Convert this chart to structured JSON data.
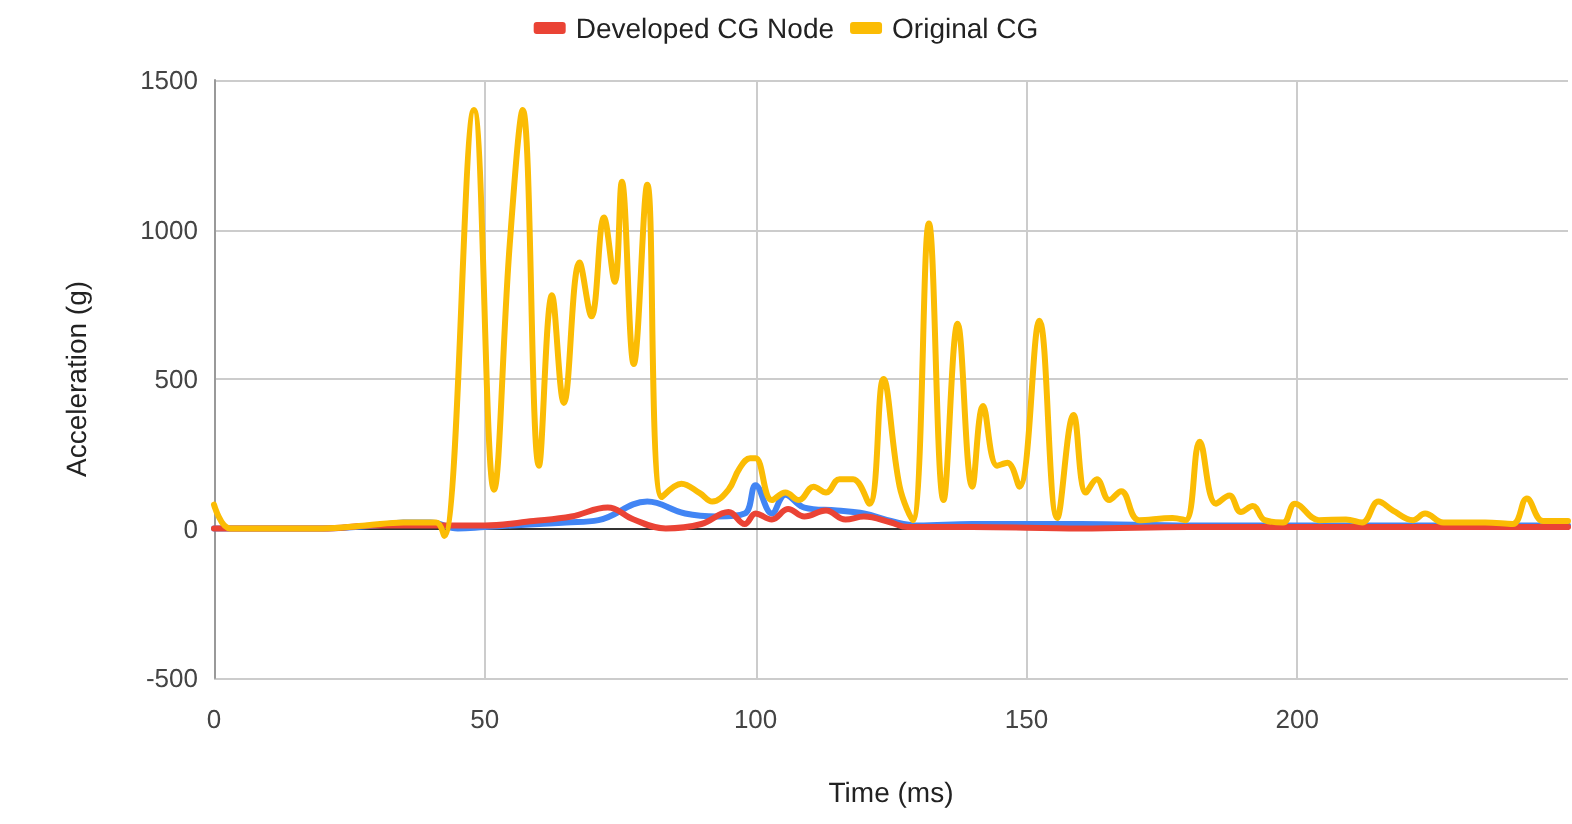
{
  "chart_data": {
    "type": "line",
    "xlabel": "Time (ms)",
    "ylabel": "Acceleration (g)",
    "xlim": [
      0,
      250
    ],
    "xticks": [
      0,
      50,
      100,
      150,
      200
    ],
    "ylim": [
      -500,
      1500
    ],
    "yticks": [
      -500,
      0,
      500,
      1000,
      1500
    ],
    "grid": true,
    "legend": "top",
    "marker": "none",
    "line_style": "solid",
    "series": [
      {
        "color": "#4285f4",
        "x": [
          0,
          10,
          20,
          30,
          35,
          40,
          45,
          50,
          55,
          60,
          65,
          71,
          80,
          87,
          93,
          98,
          100,
          103,
          105.5,
          109,
          115,
          120,
          125,
          130,
          140,
          160,
          180,
          200,
          220,
          240,
          250
        ],
        "values": [
          0,
          0,
          0,
          10,
          20,
          20,
          0,
          5,
          10,
          15,
          20,
          28,
          90,
          50,
          40,
          50,
          145,
          50,
          113,
          70,
          60,
          50,
          25,
          10,
          15,
          15,
          10,
          10,
          10,
          10,
          10
        ]
      },
      {
        "name": "Developed CG Node",
        "color": "#ea4335",
        "x": [
          0,
          10,
          20,
          30,
          40,
          50,
          59,
          66,
          72.7,
          77.5,
          83.4,
          90,
          95,
          98,
          100,
          103,
          106,
          109,
          113,
          116.6,
          120,
          125,
          128,
          140,
          160,
          180,
          200,
          220,
          240,
          250
        ],
        "values": [
          0,
          0,
          0,
          10,
          10,
          10,
          25,
          40,
          70,
          30,
          0,
          15,
          55,
          15,
          50,
          30,
          65,
          40,
          60,
          30,
          40,
          20,
          5,
          5,
          0,
          5,
          5,
          5,
          5,
          5
        ]
      },
      {
        "name": "Original CG",
        "color": "#fbbc04",
        "x": [
          0,
          3,
          10,
          20,
          28,
          35,
          41,
          42.5,
          48,
          51.7,
          54.6,
          57,
          60,
          62.4,
          64.6,
          67.5,
          69.7,
          72,
          74,
          75.3,
          77.5,
          80,
          82.7,
          86.3,
          89.7,
          92,
          95,
          97,
          99,
          100,
          103,
          105.5,
          108,
          110.7,
          113,
          115.5,
          118,
          121,
          123.6,
          126.6,
          129,
          132,
          134.7,
          137.3,
          140,
          142,
          144.6,
          146.5,
          148.7,
          152.4,
          155.7,
          158.7,
          161,
          163,
          165.3,
          167.5,
          170.8,
          177,
          179.4,
          182,
          185,
          187.5,
          189.6,
          191.8,
          194,
          197.4,
          199.6,
          204,
          209,
          212,
          215,
          217.7,
          221.4,
          223.6,
          227,
          234.7,
          239.8,
          242.4,
          245.4,
          250
        ],
        "values": [
          80,
          0,
          0,
          0,
          10,
          20,
          20,
          -25,
          1400,
          130,
          950,
          1400,
          210,
          780,
          420,
          890,
          710,
          1040,
          825,
          1160,
          550,
          1150,
          105,
          150,
          118,
          90,
          130,
          200,
          235,
          235,
          95,
          120,
          95,
          140,
          120,
          165,
          165,
          83,
          500,
          140,
          28,
          1020,
          95,
          685,
          140,
          410,
          210,
          220,
          140,
          695,
          35,
          380,
          120,
          165,
          95,
          125,
          28,
          35,
          28,
          290,
          83,
          110,
          55,
          75,
          28,
          20,
          83,
          28,
          30,
          20,
          90,
          60,
          28,
          50,
          20,
          20,
          15,
          100,
          25,
          25
        ]
      }
    ]
  }
}
